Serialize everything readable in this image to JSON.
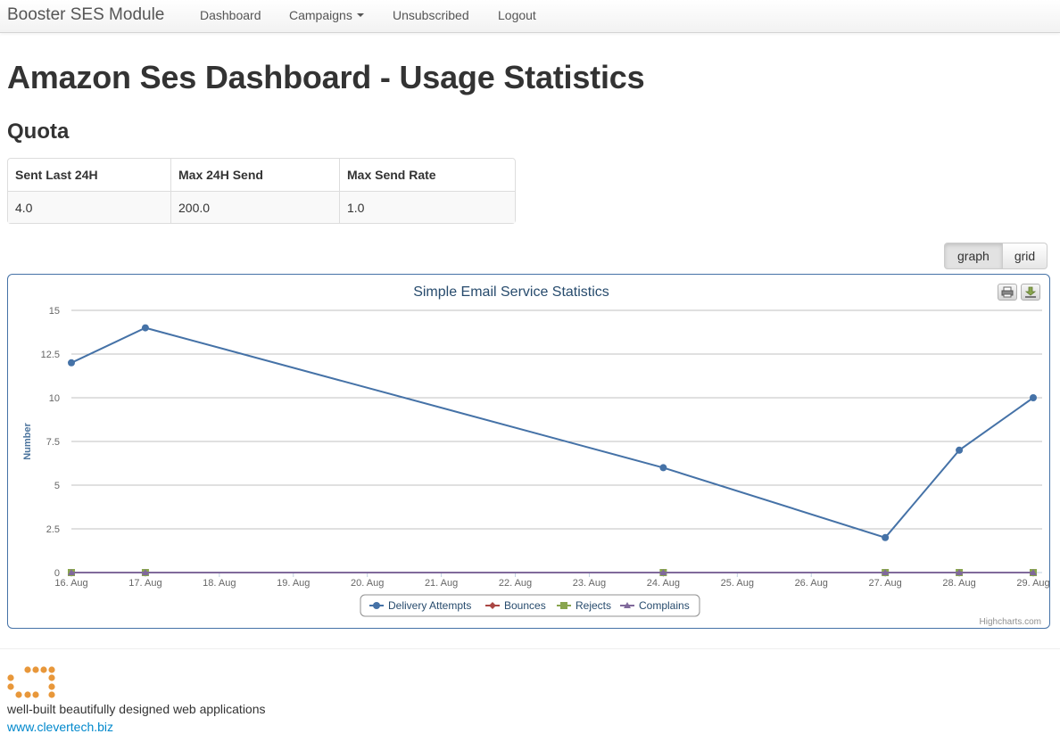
{
  "navbar": {
    "brand": "Booster SES Module",
    "items": [
      {
        "label": "Dashboard"
      },
      {
        "label": "Campaigns"
      },
      {
        "label": "Unsubscribed"
      },
      {
        "label": "Logout"
      }
    ]
  },
  "page_title": "Amazon Ses Dashboard - Usage Statistics",
  "quota": {
    "title": "Quota",
    "headers": [
      "Sent Last 24H",
      "Max 24H Send",
      "Max Send Rate"
    ],
    "values": [
      "4.0",
      "200.0",
      "1.0"
    ]
  },
  "view_toggle": {
    "graph_label": "graph",
    "grid_label": "grid",
    "active": "graph"
  },
  "chart_buttons": {
    "print_icon": "printer-icon",
    "export_icon": "download-icon"
  },
  "chart_data": {
    "type": "line",
    "title": "Simple Email Service Statistics",
    "xlabel": "",
    "ylabel": "Number",
    "categories": [
      "16. Aug",
      "17. Aug",
      "18. Aug",
      "19. Aug",
      "20. Aug",
      "21. Aug",
      "22. Aug",
      "23. Aug",
      "24. Aug",
      "25. Aug",
      "26. Aug",
      "27. Aug",
      "28. Aug",
      "29. Aug"
    ],
    "ylim": [
      0,
      15
    ],
    "yticks": [
      "0",
      "2.5",
      "5",
      "7.5",
      "10",
      "12.5",
      "15"
    ],
    "grid": true,
    "legend_position": "bottom-center",
    "credits": "Highcharts.com",
    "series": [
      {
        "name": "Delivery Attempts",
        "color": "#4572A7",
        "marker": "circle",
        "points": [
          [
            "16. Aug",
            12
          ],
          [
            "17. Aug",
            14
          ],
          [
            "24. Aug",
            6
          ],
          [
            "27. Aug",
            2
          ],
          [
            "28. Aug",
            7
          ],
          [
            "29. Aug",
            10
          ]
        ]
      },
      {
        "name": "Bounces",
        "color": "#AA4643",
        "marker": "diamond",
        "points": [
          [
            "16. Aug",
            0
          ],
          [
            "17. Aug",
            0
          ],
          [
            "24. Aug",
            0
          ],
          [
            "27. Aug",
            0
          ],
          [
            "28. Aug",
            0
          ],
          [
            "29. Aug",
            0
          ]
        ]
      },
      {
        "name": "Rejects",
        "color": "#89A54E",
        "marker": "square",
        "points": [
          [
            "16. Aug",
            0
          ],
          [
            "17. Aug",
            0
          ],
          [
            "24. Aug",
            0
          ],
          [
            "27. Aug",
            0
          ],
          [
            "28. Aug",
            0
          ],
          [
            "29. Aug",
            0
          ]
        ]
      },
      {
        "name": "Complains",
        "color": "#80699B",
        "marker": "triangle",
        "points": [
          [
            "16. Aug",
            0
          ],
          [
            "17. Aug",
            0
          ],
          [
            "24. Aug",
            0
          ],
          [
            "27. Aug",
            0
          ],
          [
            "28. Aug",
            0
          ],
          [
            "29. Aug",
            0
          ]
        ]
      }
    ]
  },
  "footer": {
    "logo_icon": "clevertech-logo-icon",
    "logo_color": "#E8973A",
    "tagline": "well-built beautifully designed web applications",
    "link": "www.clevertech.biz"
  }
}
